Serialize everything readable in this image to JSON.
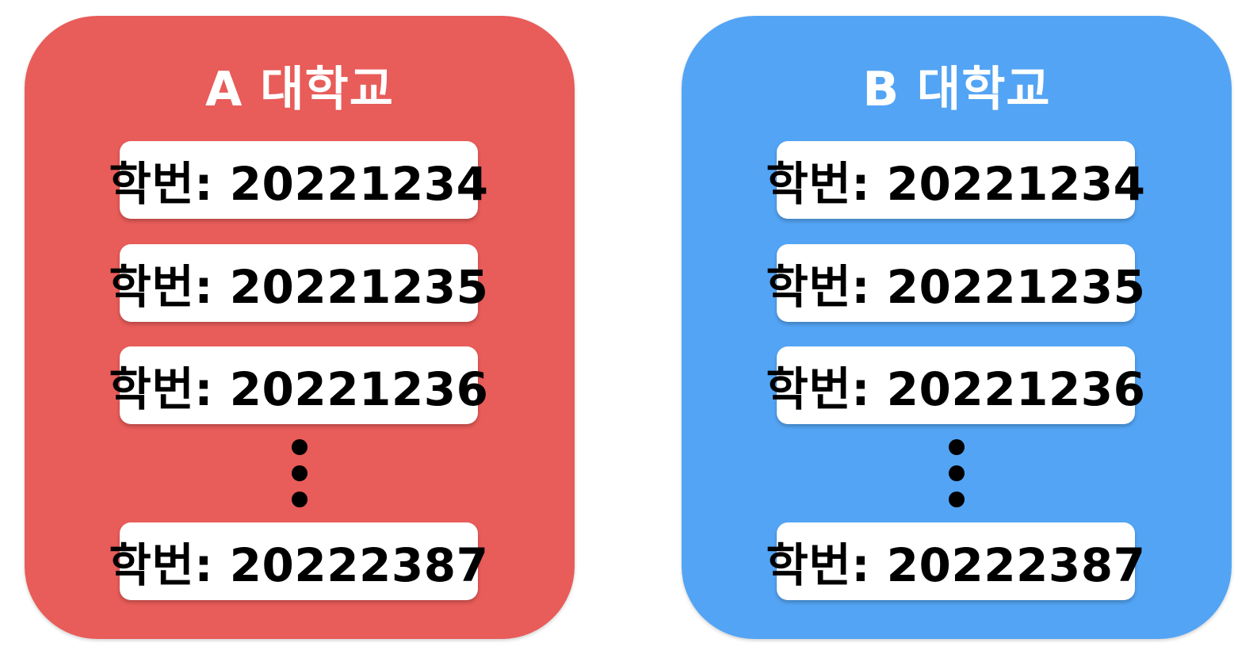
{
  "universities": [
    {
      "title": "A 대학교",
      "color": "#e85c59",
      "students": [
        "학번: 20221234",
        "학번: 20221235",
        "학번: 20221236"
      ],
      "last_student": "학번: 20222387"
    },
    {
      "title": "B 대학교",
      "color": "#53a4f4",
      "students": [
        "학번: 20221234",
        "학번: 20221235",
        "학번: 20221236"
      ],
      "last_student": "학번: 20222387"
    }
  ]
}
